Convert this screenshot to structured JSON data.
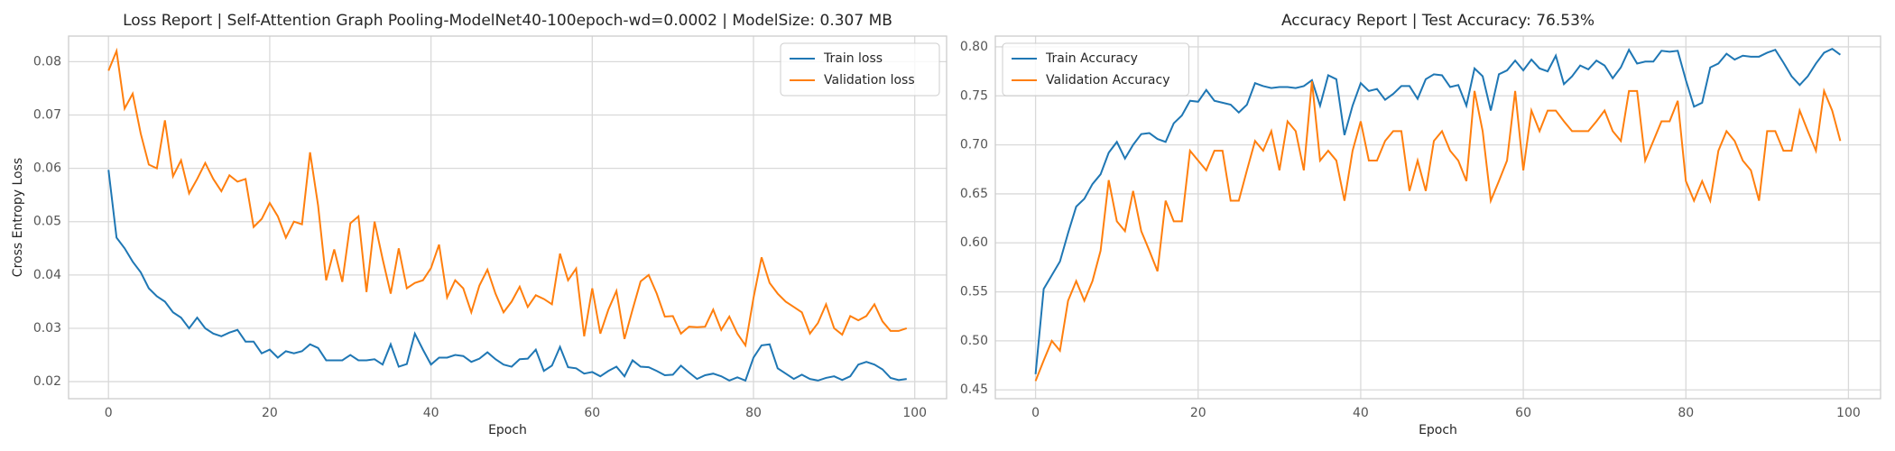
{
  "chart_data": [
    {
      "type": "line",
      "title": "Loss Report | Self-Attention Graph Pooling-ModelNet40-100epoch-wd=0.0002 | ModelSize: 0.307 MB",
      "x_label": "Epoch",
      "y_label": "Cross Entropy Loss",
      "legend": "upper right",
      "grid": true,
      "x": [
        0,
        1,
        2,
        3,
        4,
        5,
        6,
        7,
        8,
        9,
        10,
        11,
        12,
        13,
        14,
        15,
        16,
        17,
        18,
        19,
        20,
        21,
        22,
        23,
        24,
        25,
        26,
        27,
        28,
        29,
        30,
        31,
        32,
        33,
        34,
        35,
        36,
        37,
        38,
        39,
        40,
        41,
        42,
        43,
        44,
        45,
        46,
        47,
        48,
        49,
        50,
        51,
        52,
        53,
        54,
        55,
        56,
        57,
        58,
        59,
        60,
        61,
        62,
        63,
        64,
        65,
        66,
        67,
        68,
        69,
        70,
        71,
        72,
        73,
        74,
        75,
        76,
        77,
        78,
        79,
        80,
        81,
        82,
        83,
        84,
        85,
        86,
        87,
        88,
        89,
        90,
        91,
        92,
        93,
        94,
        95,
        96,
        97,
        98,
        99
      ],
      "xlim": [
        -4.95,
        103.95
      ],
      "xticks": [
        0,
        20,
        40,
        60,
        80,
        100
      ],
      "ylim": [
        0.0168,
        0.0848
      ],
      "yticks": [
        0.02,
        0.03,
        0.04,
        0.05,
        0.06,
        0.07,
        0.08
      ],
      "series": [
        {
          "name": "Train loss",
          "color": "#1f77b4",
          "values": [
            0.0597,
            0.047,
            0.045,
            0.0425,
            0.0405,
            0.0375,
            0.036,
            0.035,
            0.033,
            0.032,
            0.03,
            0.032,
            0.03,
            0.029,
            0.0285,
            0.0292,
            0.0297,
            0.0275,
            0.0275,
            0.0253,
            0.026,
            0.0245,
            0.0257,
            0.0253,
            0.0257,
            0.027,
            0.0263,
            0.024,
            0.024,
            0.024,
            0.025,
            0.024,
            0.024,
            0.0242,
            0.0232,
            0.027,
            0.0228,
            0.0233,
            0.029,
            0.026,
            0.0232,
            0.0245,
            0.0245,
            0.025,
            0.0248,
            0.0237,
            0.0243,
            0.0255,
            0.0242,
            0.0232,
            0.0228,
            0.0242,
            0.0243,
            0.026,
            0.022,
            0.023,
            0.0265,
            0.0227,
            0.0225,
            0.0215,
            0.0218,
            0.021,
            0.022,
            0.0228,
            0.021,
            0.024,
            0.0228,
            0.0227,
            0.022,
            0.0212,
            0.0213,
            0.023,
            0.0217,
            0.0205,
            0.0212,
            0.0215,
            0.021,
            0.0202,
            0.0208,
            0.0202,
            0.0245,
            0.0268,
            0.027,
            0.0225,
            0.0215,
            0.0205,
            0.0213,
            0.0205,
            0.0202,
            0.0207,
            0.021,
            0.0203,
            0.021,
            0.0232,
            0.0237,
            0.0232,
            0.0223,
            0.0207,
            0.0203,
            0.0205
          ]
        },
        {
          "name": "Validation loss",
          "color": "#ff7f0e",
          "values": [
            0.0783,
            0.082,
            0.0712,
            0.074,
            0.0665,
            0.0607,
            0.06,
            0.069,
            0.0585,
            0.0615,
            0.0553,
            0.058,
            0.061,
            0.058,
            0.0557,
            0.0587,
            0.0575,
            0.058,
            0.049,
            0.0505,
            0.0535,
            0.051,
            0.047,
            0.05,
            0.0495,
            0.063,
            0.053,
            0.039,
            0.0448,
            0.0387,
            0.0497,
            0.051,
            0.0368,
            0.05,
            0.043,
            0.0365,
            0.045,
            0.0375,
            0.0385,
            0.039,
            0.0413,
            0.0457,
            0.0358,
            0.039,
            0.0375,
            0.033,
            0.038,
            0.041,
            0.0365,
            0.033,
            0.035,
            0.0378,
            0.034,
            0.0362,
            0.0355,
            0.0345,
            0.044,
            0.039,
            0.0412,
            0.0285,
            0.0375,
            0.029,
            0.0335,
            0.037,
            0.028,
            0.0335,
            0.0388,
            0.04,
            0.0365,
            0.0322,
            0.0323,
            0.029,
            0.0303,
            0.0302,
            0.0303,
            0.0335,
            0.0297,
            0.0322,
            0.029,
            0.0268,
            0.0357,
            0.0433,
            0.0385,
            0.0365,
            0.035,
            0.034,
            0.033,
            0.029,
            0.031,
            0.0345,
            0.03,
            0.0288,
            0.0323,
            0.0315,
            0.0323,
            0.0345,
            0.0313,
            0.0295,
            0.0295,
            0.03
          ]
        }
      ]
    },
    {
      "type": "line",
      "title": "Accuracy Report | Test Accuracy: 76.53%",
      "x_label": "Epoch",
      "legend": "upper left",
      "grid": true,
      "x": [
        0,
        1,
        2,
        3,
        4,
        5,
        6,
        7,
        8,
        9,
        10,
        11,
        12,
        13,
        14,
        15,
        16,
        17,
        18,
        19,
        20,
        21,
        22,
        23,
        24,
        25,
        26,
        27,
        28,
        29,
        30,
        31,
        32,
        33,
        34,
        35,
        36,
        37,
        38,
        39,
        40,
        41,
        42,
        43,
        44,
        45,
        46,
        47,
        48,
        49,
        50,
        51,
        52,
        53,
        54,
        55,
        56,
        57,
        58,
        59,
        60,
        61,
        62,
        63,
        64,
        65,
        66,
        67,
        68,
        69,
        70,
        71,
        72,
        73,
        74,
        75,
        76,
        77,
        78,
        79,
        80,
        81,
        82,
        83,
        84,
        85,
        86,
        87,
        88,
        89,
        90,
        91,
        92,
        93,
        94,
        95,
        96,
        97,
        98,
        99
      ],
      "xlim": [
        -4.95,
        103.95
      ],
      "xticks": [
        0,
        20,
        40,
        60,
        80,
        100
      ],
      "ylim": [
        0.441,
        0.811
      ],
      "yticks": [
        0.45,
        {
          "value": 0.5,
          "label": "0.50"
        },
        0.55,
        {
          "value": 0.6,
          "label": "0.60"
        },
        0.65,
        {
          "value": 0.7,
          "label": "0.70"
        },
        0.75,
        {
          "value": 0.8,
          "label": "0.80"
        }
      ],
      "series": [
        {
          "name": "Train Accuracy",
          "color": "#1f77b4",
          "values": [
            0.466,
            0.553,
            0.567,
            0.581,
            0.61,
            0.637,
            0.645,
            0.66,
            0.67,
            0.692,
            0.703,
            0.686,
            0.7,
            0.711,
            0.712,
            0.706,
            0.703,
            0.722,
            0.73,
            0.745,
            0.744,
            0.756,
            0.745,
            0.743,
            0.741,
            0.733,
            0.741,
            0.763,
            0.76,
            0.758,
            0.759,
            0.759,
            0.758,
            0.76,
            0.766,
            0.74,
            0.771,
            0.767,
            0.71,
            0.74,
            0.763,
            0.755,
            0.757,
            0.746,
            0.752,
            0.76,
            0.76,
            0.747,
            0.767,
            0.772,
            0.771,
            0.759,
            0.761,
            0.74,
            0.778,
            0.77,
            0.735,
            0.772,
            0.776,
            0.786,
            0.776,
            0.787,
            0.778,
            0.775,
            0.791,
            0.762,
            0.77,
            0.781,
            0.777,
            0.786,
            0.781,
            0.768,
            0.779,
            0.797,
            0.783,
            0.785,
            0.785,
            0.796,
            0.795,
            0.796,
            0.766,
            0.739,
            0.743,
            0.779,
            0.783,
            0.793,
            0.787,
            0.791,
            0.79,
            0.79,
            0.794,
            0.797,
            0.784,
            0.77,
            0.761,
            0.77,
            0.783,
            0.794,
            0.798,
            0.792
          ]
        },
        {
          "name": "Validation Accuracy",
          "color": "#ff7f0e",
          "values": [
            0.459,
            0.48,
            0.5,
            0.49,
            0.541,
            0.561,
            0.541,
            0.561,
            0.592,
            0.664,
            0.622,
            0.612,
            0.653,
            0.612,
            0.592,
            0.571,
            0.643,
            0.622,
            0.622,
            0.694,
            0.684,
            0.674,
            0.694,
            0.694,
            0.643,
            0.643,
            0.674,
            0.704,
            0.694,
            0.714,
            0.674,
            0.724,
            0.714,
            0.674,
            0.765,
            0.684,
            0.694,
            0.684,
            0.643,
            0.694,
            0.724,
            0.684,
            0.684,
            0.704,
            0.714,
            0.714,
            0.653,
            0.684,
            0.653,
            0.704,
            0.714,
            0.694,
            0.684,
            0.663,
            0.755,
            0.714,
            0.643,
            0.663,
            0.684,
            0.755,
            0.674,
            0.735,
            0.714,
            0.735,
            0.735,
            0.724,
            0.714,
            0.714,
            0.714,
            0.724,
            0.735,
            0.714,
            0.704,
            0.755,
            0.755,
            0.684,
            0.704,
            0.724,
            0.724,
            0.745,
            0.663,
            0.643,
            0.663,
            0.643,
            0.694,
            0.714,
            0.704,
            0.684,
            0.674,
            0.643,
            0.714,
            0.714,
            0.694,
            0.694,
            0.735,
            0.714,
            0.694,
            0.755,
            0.735,
            0.704
          ]
        }
      ]
    }
  ]
}
